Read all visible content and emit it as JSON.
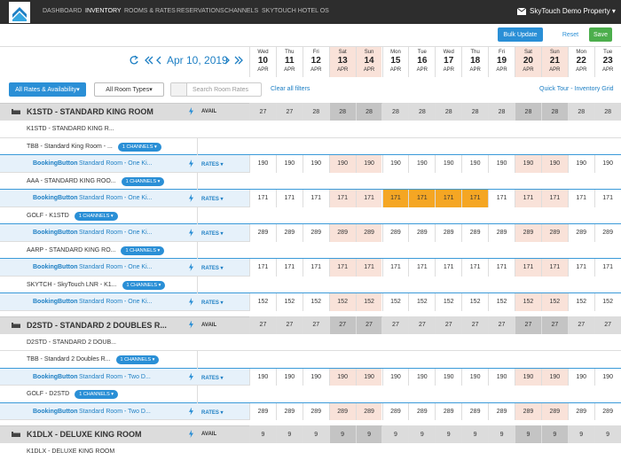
{
  "nav": {
    "items": [
      "DASHBOARD",
      "INVENTORY",
      "ROOMS & RATES",
      "RESERVATIONS",
      "CHANNELS",
      "SKYTOUCH HOTEL OS"
    ],
    "active": 1,
    "property": "SkyTouch Demo Property"
  },
  "toolbar": {
    "bulk_update": "Bulk Update",
    "reset": "Reset",
    "save": "Save"
  },
  "date_nav": {
    "current": "Apr 10, 2019"
  },
  "dates": [
    {
      "weekday": "Wed",
      "day": "10",
      "month": "APR",
      "weekend": false
    },
    {
      "weekday": "Thu",
      "day": "11",
      "month": "APR",
      "weekend": false
    },
    {
      "weekday": "Fri",
      "day": "12",
      "month": "APR",
      "weekend": false
    },
    {
      "weekday": "Sat",
      "day": "13",
      "month": "APR",
      "weekend": true
    },
    {
      "weekday": "Sun",
      "day": "14",
      "month": "APR",
      "weekend": true
    },
    {
      "weekday": "Mon",
      "day": "15",
      "month": "APR",
      "weekend": false
    },
    {
      "weekday": "Tue",
      "day": "16",
      "month": "APR",
      "weekend": false
    },
    {
      "weekday": "Wed",
      "day": "17",
      "month": "APR",
      "weekend": false
    },
    {
      "weekday": "Thu",
      "day": "18",
      "month": "APR",
      "weekend": false
    },
    {
      "weekday": "Fri",
      "day": "19",
      "month": "APR",
      "weekend": false
    },
    {
      "weekday": "Sat",
      "day": "20",
      "month": "APR",
      "weekend": true
    },
    {
      "weekday": "Sun",
      "day": "21",
      "month": "APR",
      "weekend": true
    },
    {
      "weekday": "Mon",
      "day": "22",
      "month": "APR",
      "weekend": false
    },
    {
      "weekday": "Tue",
      "day": "23",
      "month": "APR",
      "weekend": false
    }
  ],
  "filters": {
    "rates": "All Rates & Availability",
    "room_types": "All Room Types",
    "search_placeholder": "Search Room Rates",
    "clear": "Clear all filters",
    "tour": "Quick Tour - Inventory Grid"
  },
  "groups": [
    {
      "title": "K1STD - STANDARD KING ROOM",
      "avail_label": "AVAIL",
      "avail": [
        27,
        27,
        28,
        28,
        28,
        28,
        28,
        28,
        28,
        28,
        28,
        28,
        28,
        28
      ],
      "code_row": "K1STD - STANDARD KING R...",
      "rows": [
        {
          "label": "TBB - Standard King Room - ...",
          "channels": "1 CHANNELS",
          "channel": "BookingButton",
          "name": "Standard Room - One Ki...",
          "rates_label": "RATES",
          "values": [
            190,
            190,
            190,
            190,
            190,
            190,
            190,
            190,
            190,
            190,
            190,
            190,
            190,
            190
          ],
          "highlight": []
        },
        {
          "label": "AAA - STANDARD KING ROO...",
          "channels": "1 CHANNELS",
          "channel": "BookingButton",
          "name": "Standard Room - One Ki...",
          "rates_label": "RATES",
          "values": [
            171,
            171,
            171,
            171,
            171,
            171,
            171,
            171,
            171,
            171,
            171,
            171,
            171,
            171
          ],
          "highlight": [
            5,
            6,
            7,
            8
          ]
        },
        {
          "label": "GOLF - K1STD",
          "channels": "1 CHANNELS",
          "channel": "BookingButton",
          "name": "Standard Room - One Ki...",
          "rates_label": "RATES",
          "values": [
            289,
            289,
            289,
            289,
            289,
            289,
            289,
            289,
            289,
            289,
            289,
            289,
            289,
            289
          ],
          "highlight": []
        },
        {
          "label": "AARP - STANDARD KING RO...",
          "channels": "1 CHANNELS",
          "channel": "BookingButton",
          "name": "Standard Room - One Ki...",
          "rates_label": "RATES",
          "values": [
            171,
            171,
            171,
            171,
            171,
            171,
            171,
            171,
            171,
            171,
            171,
            171,
            171,
            171
          ],
          "highlight": []
        },
        {
          "label": "SKYTCH - SkyTouch LNR - K1...",
          "channels": "1 CHANNELS",
          "channel": "BookingButton",
          "name": "Standard Room - One Ki...",
          "rates_label": "RATES",
          "values": [
            152,
            152,
            152,
            152,
            152,
            152,
            152,
            152,
            152,
            152,
            152,
            152,
            152,
            152
          ],
          "highlight": []
        }
      ]
    },
    {
      "title": "D2STD - STANDARD 2 DOUBLES R...",
      "avail_label": "AVAIL",
      "avail": [
        27,
        27,
        27,
        27,
        27,
        27,
        27,
        27,
        27,
        27,
        27,
        27,
        27,
        27
      ],
      "code_row": "D2STD - STANDARD 2 DOUB...",
      "rows": [
        {
          "label": "TBB - Standard 2 Doubles R...",
          "channels": "1 CHANNELS",
          "channel": "BookingButton",
          "name": "Standard Room - Two D...",
          "rates_label": "RATES",
          "values": [
            190,
            190,
            190,
            190,
            190,
            190,
            190,
            190,
            190,
            190,
            190,
            190,
            190,
            190
          ],
          "highlight": []
        },
        {
          "label": "GOLF - D2STD",
          "channels": "1 CHANNELS",
          "channel": "BookingButton",
          "name": "Standard Room - Two D...",
          "rates_label": "RATES",
          "values": [
            289,
            289,
            289,
            289,
            289,
            289,
            289,
            289,
            289,
            289,
            289,
            289,
            289,
            289
          ],
          "highlight": []
        }
      ]
    },
    {
      "title": "K1DLX - DELUXE KING ROOM",
      "avail_label": "AVAIL",
      "avail": [
        9,
        9,
        9,
        9,
        9,
        9,
        9,
        9,
        9,
        9,
        9,
        9,
        9,
        9
      ],
      "code_row": "K1DLX - DELUXE KING ROOM",
      "rows": []
    }
  ]
}
